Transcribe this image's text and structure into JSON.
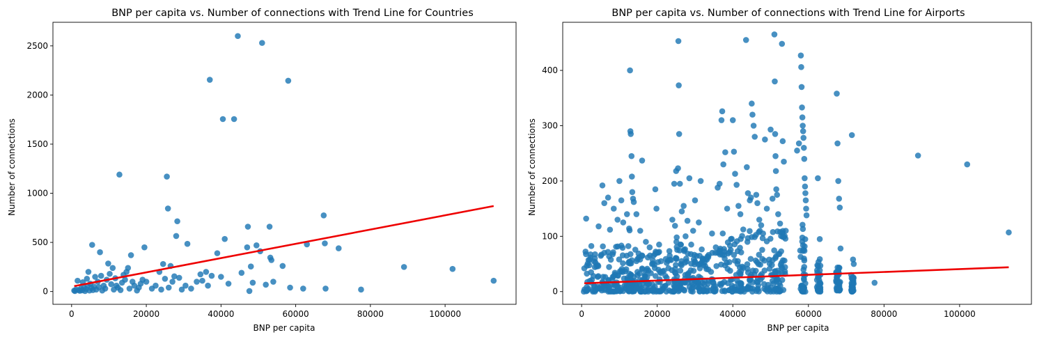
{
  "chart_data": [
    {
      "type": "scatter",
      "title": "BNP per capita vs. Number of connections with Trend Line for Countries",
      "xlabel": "BNP per capita",
      "ylabel": "Number of connections",
      "xlim": [
        -5000,
        119000
      ],
      "ylim": [
        -130,
        2740
      ],
      "xticks": [
        0,
        20000,
        40000,
        60000,
        80000,
        100000
      ],
      "yticks": [
        0,
        500,
        1000,
        1500,
        2000,
        2500
      ],
      "point_color": "#1f77b4",
      "trend_color": "#ee0000",
      "trend": {
        "x": [
          700,
          113000
        ],
        "y": [
          55,
          870
        ]
      },
      "points": [
        [
          700,
          10
        ],
        [
          900,
          5
        ],
        [
          1200,
          20
        ],
        [
          1600,
          110
        ],
        [
          1900,
          15
        ],
        [
          2200,
          8
        ],
        [
          2500,
          30
        ],
        [
          2800,
          12
        ],
        [
          3000,
          95
        ],
        [
          3300,
          40
        ],
        [
          3600,
          5
        ],
        [
          3900,
          25
        ],
        [
          4100,
          130
        ],
        [
          4300,
          60
        ],
        [
          4500,
          200
        ],
        [
          4800,
          10
        ],
        [
          5000,
          80
        ],
        [
          5300,
          35
        ],
        [
          5500,
          475
        ],
        [
          5700,
          15
        ],
        [
          6000,
          50
        ],
        [
          6300,
          150
        ],
        [
          6600,
          20
        ],
        [
          7000,
          100
        ],
        [
          7300,
          45
        ],
        [
          7600,
          400
        ],
        [
          7900,
          160
        ],
        [
          8200,
          10
        ],
        [
          8600,
          60
        ],
        [
          9000,
          30
        ],
        [
          9400,
          120
        ],
        [
          9800,
          285
        ],
        [
          10200,
          180
        ],
        [
          10600,
          75
        ],
        [
          11000,
          240
        ],
        [
          11300,
          20
        ],
        [
          11700,
          135
        ],
        [
          12000,
          60
        ],
        [
          12400,
          40
        ],
        [
          12800,
          1190
        ],
        [
          13100,
          15
        ],
        [
          13500,
          90
        ],
        [
          13900,
          170
        ],
        [
          14300,
          120
        ],
        [
          14700,
          200
        ],
        [
          15100,
          240
        ],
        [
          15500,
          30
        ],
        [
          15900,
          370
        ],
        [
          16300,
          100
        ],
        [
          16800,
          60
        ],
        [
          17500,
          10
        ],
        [
          18000,
          40
        ],
        [
          18500,
          80
        ],
        [
          19000,
          120
        ],
        [
          19500,
          450
        ],
        [
          20000,
          100
        ],
        [
          21500,
          30
        ],
        [
          22500,
          60
        ],
        [
          23500,
          200
        ],
        [
          24000,
          20
        ],
        [
          24500,
          280
        ],
        [
          25000,
          130
        ],
        [
          25500,
          1170
        ],
        [
          25800,
          845
        ],
        [
          26000,
          40
        ],
        [
          26500,
          260
        ],
        [
          27000,
          100
        ],
        [
          27500,
          155
        ],
        [
          28000,
          565
        ],
        [
          28300,
          715
        ],
        [
          28800,
          140
        ],
        [
          29500,
          20
        ],
        [
          30500,
          60
        ],
        [
          31000,
          485
        ],
        [
          32000,
          30
        ],
        [
          33500,
          100
        ],
        [
          34500,
          175
        ],
        [
          35000,
          110
        ],
        [
          36000,
          200
        ],
        [
          36500,
          60
        ],
        [
          37000,
          2155
        ],
        [
          37500,
          160
        ],
        [
          39000,
          390
        ],
        [
          40000,
          150
        ],
        [
          40500,
          1755
        ],
        [
          41000,
          535
        ],
        [
          42000,
          80
        ],
        [
          43500,
          1755
        ],
        [
          44500,
          2600
        ],
        [
          45500,
          190
        ],
        [
          47000,
          450
        ],
        [
          47200,
          660
        ],
        [
          47600,
          5
        ],
        [
          48000,
          255
        ],
        [
          48500,
          90
        ],
        [
          49500,
          470
        ],
        [
          50500,
          410
        ],
        [
          51000,
          2530
        ],
        [
          52000,
          70
        ],
        [
          53000,
          660
        ],
        [
          53200,
          345
        ],
        [
          53500,
          320
        ],
        [
          54000,
          100
        ],
        [
          56500,
          260
        ],
        [
          58000,
          2145
        ],
        [
          58500,
          40
        ],
        [
          62000,
          30
        ],
        [
          63000,
          480
        ],
        [
          67500,
          775
        ],
        [
          67800,
          490
        ],
        [
          68000,
          30
        ],
        [
          71500,
          440
        ],
        [
          77500,
          20
        ],
        [
          89000,
          250
        ],
        [
          102000,
          230
        ],
        [
          113000,
          110
        ]
      ]
    },
    {
      "type": "scatter",
      "title": "BNP per capita vs. Number of connections with Trend Line for Airports",
      "xlabel": "BNP per capita",
      "ylabel": "Number of connections",
      "xlim": [
        -5000,
        119000
      ],
      "ylim": [
        -23,
        487
      ],
      "xticks": [
        0,
        20000,
        40000,
        60000,
        80000,
        100000
      ],
      "yticks": [
        0,
        100,
        200,
        300,
        400
      ],
      "point_color": "#1f77b4",
      "trend_color": "#ee0000",
      "trend": {
        "x": [
          700,
          113000
        ],
        "y": [
          15,
          44
        ]
      },
      "points": [
        [
          1200,
          132
        ],
        [
          2500,
          35
        ],
        [
          3500,
          60
        ],
        [
          4500,
          118
        ],
        [
          5500,
          192
        ],
        [
          6000,
          160
        ],
        [
          7000,
          170
        ],
        [
          7500,
          112
        ],
        [
          8500,
          150
        ],
        [
          9500,
          130
        ],
        [
          10000,
          200
        ],
        [
          10500,
          165
        ],
        [
          11000,
          125
        ],
        [
          12000,
          140
        ],
        [
          12800,
          400
        ],
        [
          12900,
          290
        ],
        [
          13000,
          285
        ],
        [
          13200,
          245
        ],
        [
          13300,
          208
        ],
        [
          13400,
          180
        ],
        [
          13600,
          168
        ],
        [
          13800,
          162
        ],
        [
          14500,
          140
        ],
        [
          15500,
          110
        ],
        [
          16000,
          237
        ],
        [
          17000,
          90
        ],
        [
          18000,
          80
        ],
        [
          19000,
          65
        ],
        [
          19500,
          185
        ],
        [
          19800,
          150
        ],
        [
          20500,
          85
        ],
        [
          21000,
          55
        ],
        [
          22500,
          25
        ],
        [
          24000,
          130
        ],
        [
          24500,
          195
        ],
        [
          25000,
          218
        ],
        [
          25500,
          223
        ],
        [
          25600,
          453
        ],
        [
          25700,
          373
        ],
        [
          25800,
          285
        ],
        [
          26000,
          195
        ],
        [
          26500,
          145
        ],
        [
          27000,
          155
        ],
        [
          27500,
          100
        ],
        [
          28000,
          128
        ],
        [
          28500,
          205
        ],
        [
          29000,
          85
        ],
        [
          29500,
          110
        ],
        [
          30000,
          165
        ],
        [
          31000,
          125
        ],
        [
          31500,
          200
        ],
        [
          32000,
          60
        ],
        [
          33500,
          40
        ],
        [
          34500,
          105
        ],
        [
          35500,
          80
        ],
        [
          36000,
          188
        ],
        [
          36500,
          195
        ],
        [
          37000,
          310
        ],
        [
          37200,
          326
        ],
        [
          37500,
          230
        ],
        [
          38000,
          252
        ],
        [
          38500,
          150
        ],
        [
          39500,
          95
        ],
        [
          40000,
          310
        ],
        [
          40300,
          253
        ],
        [
          40600,
          213
        ],
        [
          41000,
          193
        ],
        [
          41500,
          155
        ],
        [
          42000,
          140
        ],
        [
          43500,
          455
        ],
        [
          43700,
          225
        ],
        [
          44000,
          178
        ],
        [
          44500,
          165
        ],
        [
          44800,
          170
        ],
        [
          45000,
          340
        ],
        [
          45200,
          320
        ],
        [
          45500,
          300
        ],
        [
          45800,
          280
        ],
        [
          46200,
          175
        ],
        [
          46500,
          160
        ],
        [
          47000,
          130
        ],
        [
          47500,
          120
        ],
        [
          48000,
          105
        ],
        [
          48500,
          275
        ],
        [
          49000,
          150
        ],
        [
          50000,
          293
        ],
        [
          50500,
          168
        ],
        [
          51000,
          465
        ],
        [
          51100,
          380
        ],
        [
          51200,
          285
        ],
        [
          51300,
          245
        ],
        [
          51400,
          218
        ],
        [
          51500,
          185
        ],
        [
          51700,
          175
        ],
        [
          52000,
          140
        ],
        [
          52500,
          123
        ],
        [
          53000,
          448
        ],
        [
          53200,
          272
        ],
        [
          53500,
          235
        ],
        [
          54000,
          110
        ],
        [
          57000,
          255
        ],
        [
          57500,
          268
        ],
        [
          58000,
          427
        ],
        [
          58100,
          406
        ],
        [
          58200,
          370
        ],
        [
          58300,
          333
        ],
        [
          58400,
          315
        ],
        [
          58500,
          300
        ],
        [
          58600,
          290
        ],
        [
          58700,
          278
        ],
        [
          58800,
          260
        ],
        [
          58900,
          240
        ],
        [
          59000,
          205
        ],
        [
          59100,
          190
        ],
        [
          59200,
          178
        ],
        [
          59300,
          165
        ],
        [
          59400,
          150
        ],
        [
          59500,
          138
        ],
        [
          62500,
          205
        ],
        [
          63000,
          95
        ],
        [
          67500,
          358
        ],
        [
          67700,
          268
        ],
        [
          67900,
          200
        ],
        [
          68100,
          168
        ],
        [
          68300,
          152
        ],
        [
          68500,
          78
        ],
        [
          71500,
          283
        ],
        [
          71800,
          58
        ],
        [
          72000,
          50
        ],
        [
          77500,
          16
        ],
        [
          89000,
          246
        ],
        [
          102000,
          230
        ],
        [
          113000,
          107
        ]
      ],
      "clusters": [
        {
          "x_from": 500,
          "x_to": 12500,
          "y_max": 85
        },
        {
          "x_from": 12400,
          "x_to": 13900,
          "y_max": 135
        },
        {
          "x_from": 13800,
          "x_to": 24000,
          "y_max": 80
        },
        {
          "x_from": 24200,
          "x_to": 26800,
          "y_max": 120
        },
        {
          "x_from": 26800,
          "x_to": 37000,
          "y_max": 80
        },
        {
          "x_from": 37000,
          "x_to": 49000,
          "y_max": 115
        },
        {
          "x_from": 49000,
          "x_to": 54000,
          "y_max": 110
        },
        {
          "x_from": 57800,
          "x_to": 59200,
          "y_max": 135
        },
        {
          "x_from": 62200,
          "x_to": 63200,
          "y_max": 60
        },
        {
          "x_from": 67300,
          "x_to": 68400,
          "y_max": 45
        },
        {
          "x_from": 71300,
          "x_to": 72000,
          "y_max": 30
        }
      ]
    }
  ]
}
